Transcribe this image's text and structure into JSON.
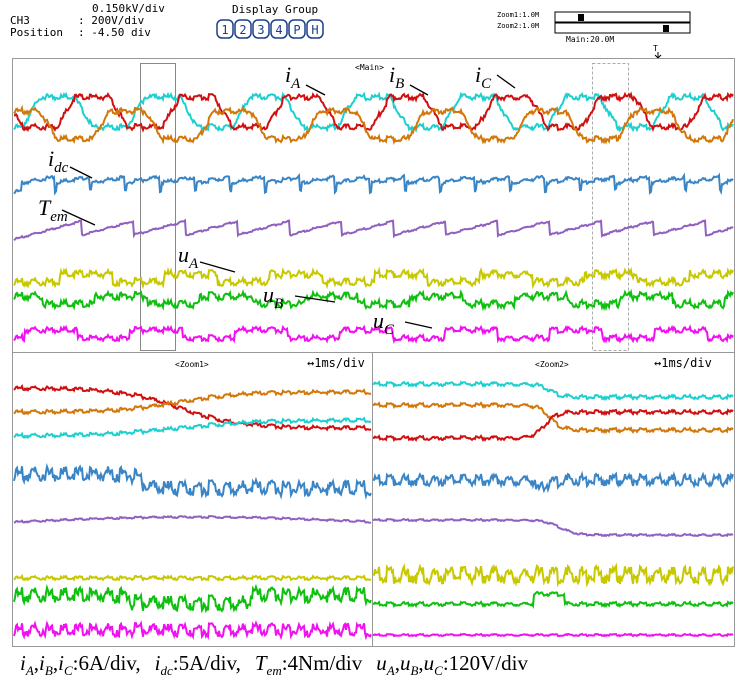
{
  "header": {
    "scale": "0.150kV/div",
    "rows": [
      [
        "CH3",
        ": 200V/div"
      ],
      [
        "Position",
        ": -4.50 div"
      ]
    ],
    "display_group": "Display Group",
    "buttons": [
      "1",
      "2",
      "3",
      "4",
      "P",
      "H"
    ],
    "zoom1": "Zoom1:1.0M",
    "zoom2": "Zoom2:1.0M",
    "main_rate": "Main:20.0M",
    "trigger": "T"
  },
  "screen": {
    "main_tag": "<Main>",
    "zoom1_tag": "<Zoom1>",
    "zoom2_tag": "<Zoom2>",
    "zoom1_rate": "↔1ms/div",
    "zoom2_rate": "↔1ms/div"
  },
  "labels": [
    {
      "base": "i",
      "sub": "A"
    },
    {
      "base": "i",
      "sub": "B"
    },
    {
      "base": "i",
      "sub": "C"
    },
    {
      "base": "i",
      "sub": "dc"
    },
    {
      "base": "T",
      "sub": "em"
    },
    {
      "base": "u",
      "sub": "A"
    },
    {
      "base": "u",
      "sub": "B"
    },
    {
      "base": "u",
      "sub": "C"
    }
  ],
  "caption": [
    {
      "base": "i",
      "sub": "A",
      "after": ","
    },
    {
      "base": "i",
      "sub": "B",
      "after": ","
    },
    {
      "base": "i",
      "sub": "C",
      "after": ":6A/div,"
    },
    {
      "base": "i",
      "sub": "dc",
      "after": ":5A/div,"
    },
    {
      "base": "T",
      "sub": "em",
      "after": ":4Nm/div"
    },
    {
      "base": "u",
      "sub": "A",
      "after": ","
    },
    {
      "base": "u",
      "sub": "B",
      "after": ","
    },
    {
      "base": "u",
      "sub": "C",
      "after": ":120V/div"
    }
  ]
}
